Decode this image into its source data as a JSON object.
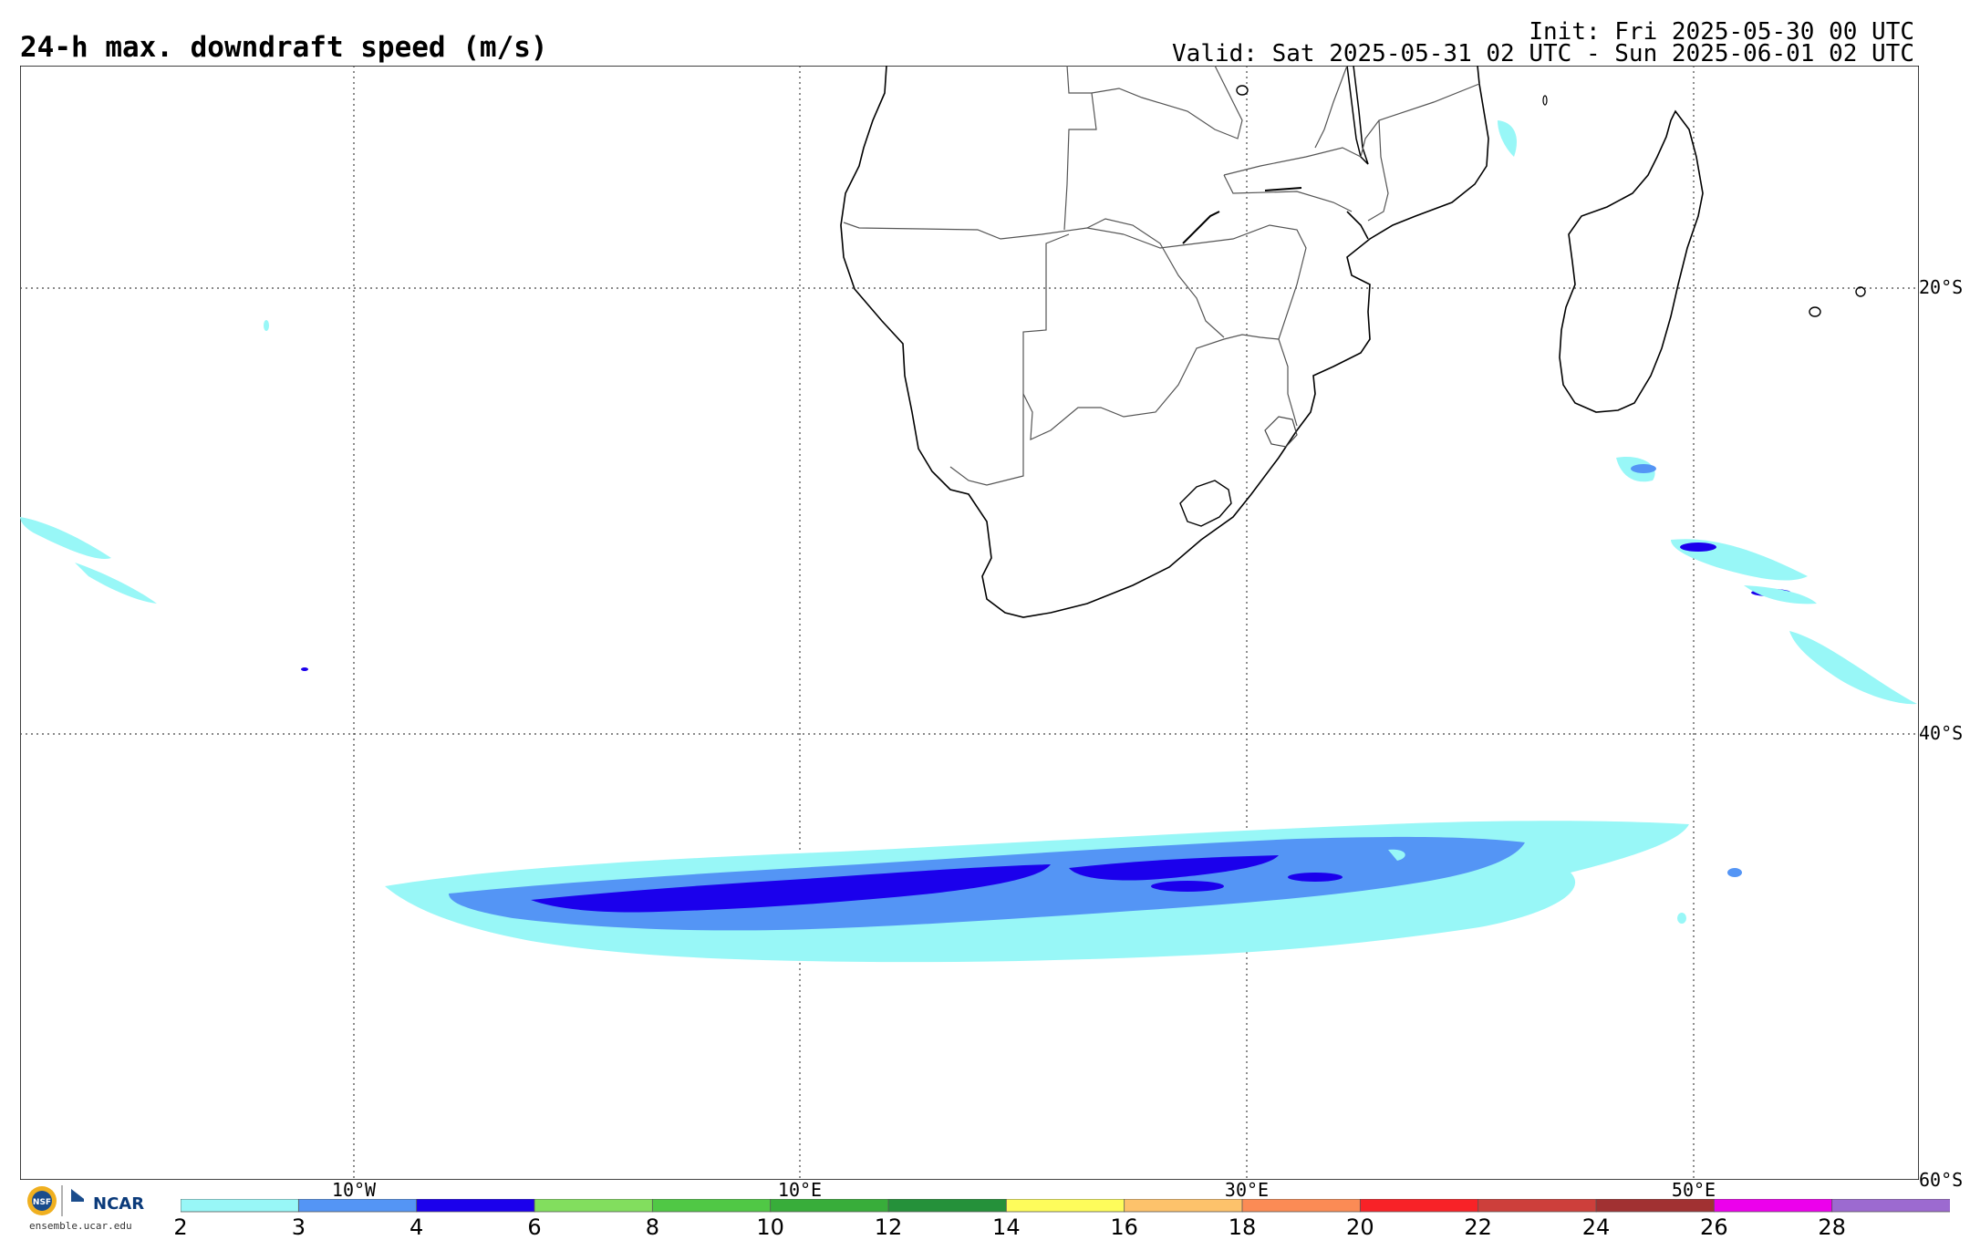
{
  "header": {
    "title": "24-h max. downdraft speed (m/s)",
    "init": "Init: Fri 2025-05-30 00 UTC",
    "valid": "Valid: Sat 2025-05-31 02 UTC - Sun 2025-06-01 02 UTC"
  },
  "map": {
    "lat_labels": [
      "20°S",
      "40°S",
      "60°S"
    ],
    "lon_labels": [
      "10°W",
      "10°E",
      "30°E",
      "50°E"
    ]
  },
  "logo": {
    "ncar": "NCAR",
    "url": "ensemble.ucar.edu",
    "seal_text": "NSF"
  },
  "colorbar": {
    "ticks": [
      "2",
      "3",
      "4",
      "6",
      "8",
      "10",
      "12",
      "14",
      "16",
      "18",
      "20",
      "22",
      "24",
      "26",
      "28"
    ],
    "colors": [
      "#98f7f7",
      "#5495f5",
      "#1b00ec",
      "#82de5e",
      "#50c845",
      "#38ad3a",
      "#25913a",
      "#fefc5b",
      "#fdc26b",
      "#fb8b55",
      "#f82227",
      "#cd3f3b",
      "#a13132",
      "#ec00ec",
      "#9c6ad0"
    ]
  }
}
